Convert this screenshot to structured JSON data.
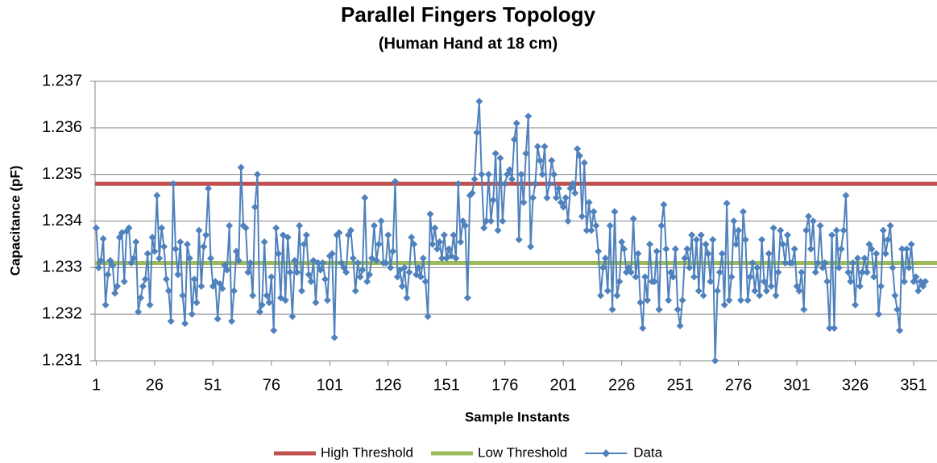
{
  "chart_data": {
    "type": "line",
    "title": "Parallel Fingers Topology",
    "subtitle": "(Human Hand at 18 cm)",
    "x_label": "Sample Instants",
    "y_label": "Capacitance (pF)",
    "xlim": [
      0.5,
      361
    ],
    "xticks": [
      1,
      26,
      51,
      76,
      101,
      126,
      151,
      176,
      201,
      226,
      251,
      276,
      301,
      326,
      351
    ],
    "ylim": [
      1.231,
      1.237
    ],
    "yticks": [
      1.231,
      1.232,
      1.233,
      1.234,
      1.235,
      1.236,
      1.237
    ],
    "grid": true,
    "legend": "bottom",
    "thresholds": [
      {
        "name": "High Threshold",
        "color": "#c0504d",
        "value": 1.2348
      },
      {
        "name": "Low Threshold",
        "color": "#9bbb59",
        "value": 1.2331
      }
    ],
    "x": [
      1,
      2,
      3,
      4,
      5,
      6,
      7,
      8,
      9,
      10,
      11,
      12,
      13,
      14,
      15,
      16,
      17,
      18,
      19,
      20,
      21,
      22,
      23,
      24,
      25,
      26,
      27,
      28,
      29,
      30,
      31,
      32,
      33,
      34,
      35,
      36,
      37,
      38,
      39,
      40,
      41,
      42,
      43,
      44,
      45,
      46,
      47,
      48,
      49,
      50,
      51,
      52,
      53,
      54,
      55,
      56,
      57,
      58,
      59,
      60,
      61,
      62,
      63,
      64,
      65,
      66,
      67,
      68,
      69,
      70,
      71,
      72,
      73,
      74,
      75,
      76,
      77,
      78,
      79,
      80,
      81,
      82,
      83,
      84,
      85,
      86,
      87,
      88,
      89,
      90,
      91,
      92,
      93,
      94,
      95,
      96,
      97,
      98,
      99,
      100,
      101,
      102,
      103,
      104,
      105,
      106,
      107,
      108,
      109,
      110,
      111,
      112,
      113,
      114,
      115,
      116,
      117,
      118,
      119,
      120,
      121,
      122,
      123,
      124,
      125,
      126,
      127,
      128,
      129,
      130,
      131,
      132,
      133,
      134,
      135,
      136,
      137,
      138,
      139,
      140,
      141,
      142,
      143,
      144,
      145,
      146,
      147,
      148,
      149,
      150,
      151,
      152,
      153,
      154,
      155,
      156,
      157,
      158,
      159,
      160,
      161,
      162,
      163,
      164,
      165,
      166,
      167,
      168,
      169,
      170,
      171,
      172,
      173,
      174,
      175,
      176,
      177,
      178,
      179,
      180,
      181,
      182,
      183,
      184,
      185,
      186,
      187,
      188,
      189,
      190,
      191,
      192,
      193,
      194,
      195,
      196,
      197,
      198,
      199,
      200,
      201,
      202,
      203,
      204,
      205,
      206,
      207,
      208,
      209,
      210,
      211,
      212,
      213,
      214,
      215,
      216,
      217,
      218,
      219,
      220,
      221,
      222,
      223,
      224,
      225,
      226,
      227,
      228,
      229,
      230,
      231,
      232,
      233,
      234,
      235,
      236,
      237,
      238,
      239,
      240,
      241,
      242,
      243,
      244,
      245,
      246,
      247,
      248,
      249,
      250,
      251,
      252,
      253,
      254,
      255,
      256,
      257,
      258,
      259,
      260,
      261,
      262,
      263,
      264,
      265,
      266,
      267,
      268,
      269,
      270,
      271,
      272,
      273,
      274,
      275,
      276,
      277,
      278,
      279,
      280,
      281,
      282,
      283,
      284,
      285,
      286,
      287,
      288,
      289,
      290,
      291,
      292,
      293,
      294,
      295,
      296,
      297,
      298,
      299,
      300,
      301,
      302,
      303,
      304,
      305,
      306,
      307,
      308,
      309,
      310,
      311,
      312,
      313,
      314,
      315,
      316,
      317,
      318,
      319,
      320,
      321,
      322,
      323,
      324,
      325,
      326,
      327,
      328,
      329,
      330,
      331,
      332,
      333,
      334,
      335,
      336,
      337,
      338,
      339,
      340,
      341,
      342,
      343,
      344,
      345,
      346,
      347,
      348,
      349,
      350,
      351,
      352,
      353,
      354,
      355,
      356
    ],
    "series": [
      {
        "name": "Data",
        "color": "#4f81bd",
        "values": [
          1.23385,
          1.233,
          1.23315,
          1.23362,
          1.2322,
          1.23285,
          1.23315,
          1.23305,
          1.23245,
          1.2326,
          1.23365,
          1.23375,
          1.2327,
          1.23378,
          1.23385,
          1.2331,
          1.2332,
          1.23355,
          1.23205,
          1.23235,
          1.2326,
          1.23275,
          1.2333,
          1.2322,
          1.23365,
          1.23335,
          1.23455,
          1.2332,
          1.23385,
          1.23345,
          1.23275,
          1.2325,
          1.23185,
          1.2348,
          1.2334,
          1.23285,
          1.23355,
          1.2324,
          1.2318,
          1.2335,
          1.2332,
          1.232,
          1.23275,
          1.23225,
          1.2338,
          1.2326,
          1.23345,
          1.2337,
          1.2347,
          1.2332,
          1.2326,
          1.2327,
          1.2319,
          1.23265,
          1.23255,
          1.23305,
          1.23295,
          1.2339,
          1.23185,
          1.2325,
          1.23335,
          1.23315,
          1.23515,
          1.2339,
          1.23385,
          1.2329,
          1.2331,
          1.2324,
          1.2343,
          1.235,
          1.23205,
          1.2322,
          1.23355,
          1.2324,
          1.23225,
          1.2328,
          1.23165,
          1.23385,
          1.2333,
          1.23235,
          1.2337,
          1.2323,
          1.23365,
          1.2329,
          1.23195,
          1.23315,
          1.2329,
          1.2339,
          1.2325,
          1.2335,
          1.2337,
          1.23285,
          1.2327,
          1.23315,
          1.23225,
          1.2331,
          1.23295,
          1.2331,
          1.23275,
          1.2323,
          1.23325,
          1.2333,
          1.2315,
          1.2337,
          1.23375,
          1.2331,
          1.233,
          1.2329,
          1.2337,
          1.2338,
          1.2332,
          1.2325,
          1.2331,
          1.2328,
          1.23295,
          1.2345,
          1.2327,
          1.23285,
          1.2332,
          1.2339,
          1.23315,
          1.2335,
          1.234,
          1.2331,
          1.2331,
          1.2337,
          1.233,
          1.23335,
          1.23485,
          1.2328,
          1.23295,
          1.2326,
          1.233,
          1.23235,
          1.2329,
          1.23365,
          1.2335,
          1.23285,
          1.233,
          1.2328,
          1.2332,
          1.2327,
          1.23195,
          1.23415,
          1.2335,
          1.23385,
          1.2334,
          1.23355,
          1.2332,
          1.2337,
          1.2332,
          1.2334,
          1.23325,
          1.2337,
          1.2332,
          1.2348,
          1.23355,
          1.234,
          1.2339,
          1.23235,
          1.23455,
          1.2346,
          1.2349,
          1.2359,
          1.23657,
          1.235,
          1.23385,
          1.234,
          1.235,
          1.234,
          1.23445,
          1.23545,
          1.2338,
          1.23535,
          1.234,
          1.2348,
          1.235,
          1.2351,
          1.2349,
          1.23575,
          1.2361,
          1.2336,
          1.235,
          1.2344,
          1.23545,
          1.23625,
          1.23345,
          1.2345,
          1.2348,
          1.2356,
          1.2353,
          1.235,
          1.2356,
          1.2345,
          1.2348,
          1.2353,
          1.235,
          1.2345,
          1.2347,
          1.2344,
          1.2343,
          1.2345,
          1.234,
          1.2347,
          1.2348,
          1.2346,
          1.23555,
          1.2354,
          1.2341,
          1.23525,
          1.2338,
          1.2344,
          1.2338,
          1.2342,
          1.2339,
          1.23335,
          1.2324,
          1.233,
          1.2332,
          1.2325,
          1.2339,
          1.2321,
          1.2342,
          1.2324,
          1.2327,
          1.23355,
          1.2334,
          1.2329,
          1.233,
          1.2329,
          1.23405,
          1.2328,
          1.2333,
          1.23225,
          1.2317,
          1.2328,
          1.2323,
          1.2335,
          1.2327,
          1.2327,
          1.23335,
          1.2321,
          1.2339,
          1.23435,
          1.2334,
          1.2323,
          1.2329,
          1.2328,
          1.2334,
          1.2321,
          1.23175,
          1.2323,
          1.2332,
          1.2334,
          1.233,
          1.2337,
          1.2328,
          1.2336,
          1.2325,
          1.2337,
          1.2324,
          1.2335,
          1.2333,
          1.2327,
          1.2336,
          1.231,
          1.2325,
          1.2329,
          1.2333,
          1.2322,
          1.23438,
          1.2323,
          1.2328,
          1.234,
          1.2335,
          1.2338,
          1.2323,
          1.2342,
          1.2336,
          1.2323,
          1.2328,
          1.2331,
          1.2325,
          1.233,
          1.2324,
          1.2336,
          1.2327,
          1.2325,
          1.2333,
          1.2326,
          1.23385,
          1.2324,
          1.2329,
          1.2338,
          1.2335,
          1.2331,
          1.2337,
          1.2331,
          1.2331,
          1.2334,
          1.2326,
          1.2325,
          1.2329,
          1.2321,
          1.2338,
          1.2341,
          1.2334,
          1.234,
          1.2329,
          1.2331,
          1.2339,
          1.233,
          1.2331,
          1.2327,
          1.2317,
          1.2337,
          1.2317,
          1.2338,
          1.233,
          1.2334,
          1.2338,
          1.23455,
          1.2329,
          1.2327,
          1.2331,
          1.2322,
          1.2332,
          1.2326,
          1.2329,
          1.2332,
          1.2329,
          1.2335,
          1.2334,
          1.2328,
          1.2333,
          1.232,
          1.2326,
          1.2338,
          1.2333,
          1.2336,
          1.2339,
          1.233,
          1.2324,
          1.2321,
          1.23165,
          1.2334,
          1.2327,
          1.2334,
          1.233,
          1.2335,
          1.2327,
          1.2328,
          1.2325,
          1.2327,
          1.2326,
          1.2327
        ]
      }
    ]
  }
}
